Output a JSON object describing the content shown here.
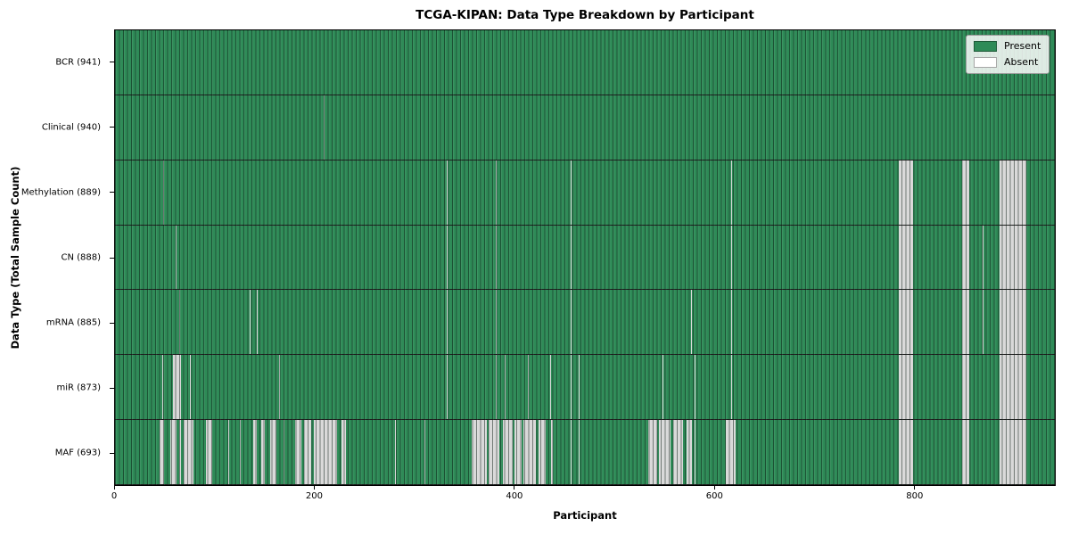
{
  "chart_data": {
    "type": "heatmap",
    "title": "TCGA-KIPAN: Data Type Breakdown by Participant",
    "xlabel": "Participant",
    "ylabel": "Data Type (Total Sample Count)",
    "xlim": [
      0,
      941
    ],
    "x_ticks": [
      0,
      200,
      400,
      600,
      800
    ],
    "n_participants": 941,
    "present_color": "#2e8b57",
    "absent_color": "#ffffff",
    "legend": {
      "position": "upper right",
      "entries": [
        {
          "label": "Present",
          "color": "#2e8b57"
        },
        {
          "label": "Absent",
          "color": "#ffffff"
        }
      ]
    },
    "rows": [
      {
        "name": "BCR",
        "label": "BCR (941)",
        "present_count": 941,
        "absent_count": 0,
        "absent_ranges": []
      },
      {
        "name": "Clinical",
        "label": "Clinical (940)",
        "present_count": 940,
        "absent_count": 1,
        "absent_ranges": [
          [
            209,
            210
          ]
        ]
      },
      {
        "name": "Methylation",
        "label": "Methylation (889)",
        "present_count": 889,
        "absent_count": 52,
        "absent_ranges": [
          [
            48,
            49
          ],
          [
            332,
            333
          ],
          [
            381,
            382
          ],
          [
            456,
            457
          ],
          [
            617,
            618
          ],
          [
            785,
            799
          ],
          [
            848,
            855
          ],
          [
            886,
            912
          ]
        ]
      },
      {
        "name": "CN",
        "label": "CN (888)",
        "present_count": 888,
        "absent_count": 53,
        "absent_ranges": [
          [
            61,
            62
          ],
          [
            332,
            333
          ],
          [
            381,
            382
          ],
          [
            456,
            457
          ],
          [
            617,
            618
          ],
          [
            785,
            799
          ],
          [
            848,
            855
          ],
          [
            869,
            870
          ],
          [
            886,
            912
          ]
        ]
      },
      {
        "name": "mRNA",
        "label": "mRNA (885)",
        "present_count": 885,
        "absent_count": 56,
        "absent_ranges": [
          [
            64,
            65
          ],
          [
            135,
            136
          ],
          [
            142,
            143
          ],
          [
            332,
            333
          ],
          [
            381,
            382
          ],
          [
            456,
            457
          ],
          [
            577,
            578
          ],
          [
            617,
            618
          ],
          [
            785,
            799
          ],
          [
            848,
            855
          ],
          [
            869,
            870
          ],
          [
            886,
            912
          ]
        ]
      },
      {
        "name": "miR",
        "label": "miR (873)",
        "present_count": 873,
        "absent_count": 68,
        "absent_ranges": [
          [
            47,
            48
          ],
          [
            58,
            66
          ],
          [
            75,
            76
          ],
          [
            164,
            165
          ],
          [
            332,
            333
          ],
          [
            381,
            382
          ],
          [
            390,
            391
          ],
          [
            413,
            414
          ],
          [
            436,
            437
          ],
          [
            456,
            457
          ],
          [
            464,
            465
          ],
          [
            548,
            549
          ],
          [
            580,
            581
          ],
          [
            617,
            618
          ],
          [
            785,
            799
          ],
          [
            848,
            855
          ],
          [
            886,
            912
          ]
        ]
      },
      {
        "name": "MAF",
        "label": "MAF (693)",
        "present_count": 693,
        "absent_count": 248,
        "absent_ranges": [
          [
            45,
            49
          ],
          [
            55,
            62
          ],
          [
            64,
            66
          ],
          [
            69,
            79
          ],
          [
            91,
            97
          ],
          [
            113,
            114
          ],
          [
            125,
            126
          ],
          [
            138,
            142
          ],
          [
            146,
            150
          ],
          [
            155,
            162
          ],
          [
            169,
            170
          ],
          [
            180,
            187
          ],
          [
            189,
            196
          ],
          [
            199,
            222
          ],
          [
            227,
            231
          ],
          [
            280,
            281
          ],
          [
            310,
            311
          ],
          [
            357,
            372
          ],
          [
            374,
            385
          ],
          [
            388,
            398
          ],
          [
            400,
            407
          ],
          [
            409,
            421
          ],
          [
            424,
            431
          ],
          [
            437,
            438
          ],
          [
            456,
            457
          ],
          [
            464,
            465
          ],
          [
            534,
            543
          ],
          [
            545,
            556
          ],
          [
            559,
            569
          ],
          [
            572,
            578
          ],
          [
            580,
            581
          ],
          [
            612,
            621
          ],
          [
            785,
            799
          ],
          [
            848,
            855
          ],
          [
            886,
            912
          ]
        ]
      }
    ]
  }
}
